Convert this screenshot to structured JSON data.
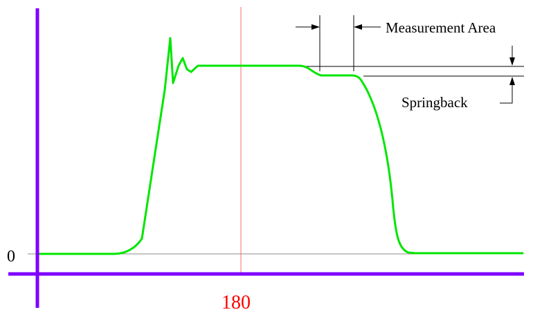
{
  "labels": {
    "y_zero": "0",
    "x_center": "180",
    "measurement_area": "Measurement Area",
    "springback": "Springback"
  },
  "colors": {
    "axis": "#8000ff",
    "curve": "#00e600",
    "center_line": "#ff6b6b",
    "x_center_label": "#ff0000",
    "baseline": "#8c8c8c",
    "annotation": "#000000"
  }
}
